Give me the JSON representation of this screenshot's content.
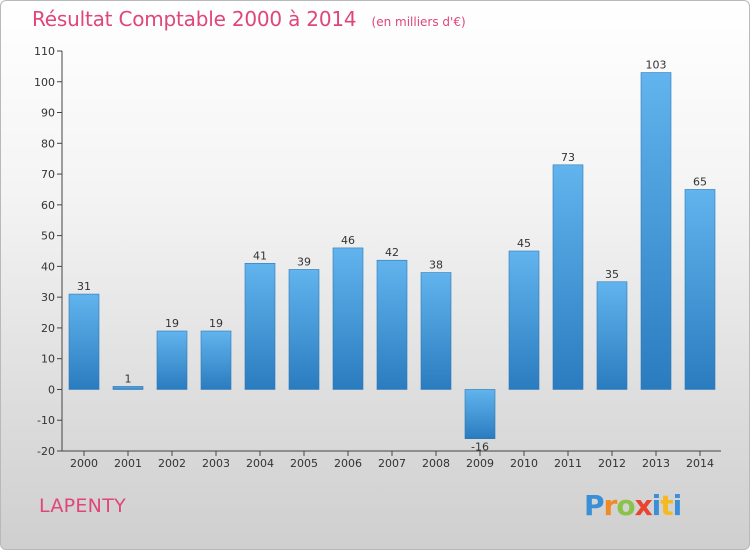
{
  "header": {
    "title": "Résultat Comptable 2000 à 2014",
    "subtitle": "(en milliers d'€)"
  },
  "location": "LAPENTY",
  "brand": {
    "letters": [
      "P",
      "r",
      "o",
      "x",
      "i",
      "t",
      "i"
    ],
    "colors": [
      "#3a8fd6",
      "#f08a24",
      "#8bc34a",
      "#e8442f",
      "#3a8fd6",
      "#f5b921",
      "#3a8fd6"
    ]
  },
  "colors": {
    "bar": "#3f9ae0",
    "bar_light": "#62b4ee",
    "bar_dark": "#2a7cbf",
    "accent": "#e0457b"
  },
  "chart_data": {
    "type": "bar",
    "title": "Résultat Comptable 2000 à 2014",
    "subtitle": "(en milliers d'€)",
    "categories": [
      "2000",
      "2001",
      "2002",
      "2003",
      "2004",
      "2005",
      "2006",
      "2007",
      "2008",
      "2009",
      "2010",
      "2011",
      "2012",
      "2013",
      "2014"
    ],
    "values": [
      31,
      1,
      19,
      19,
      41,
      39,
      46,
      42,
      38,
      -16,
      45,
      73,
      35,
      103,
      65
    ],
    "ylim": [
      -20,
      110
    ],
    "yticks": [
      -20,
      -10,
      0,
      10,
      20,
      30,
      40,
      50,
      60,
      70,
      80,
      90,
      100,
      110
    ],
    "xlabel": "",
    "ylabel": "",
    "grid": false,
    "legend": "none"
  }
}
